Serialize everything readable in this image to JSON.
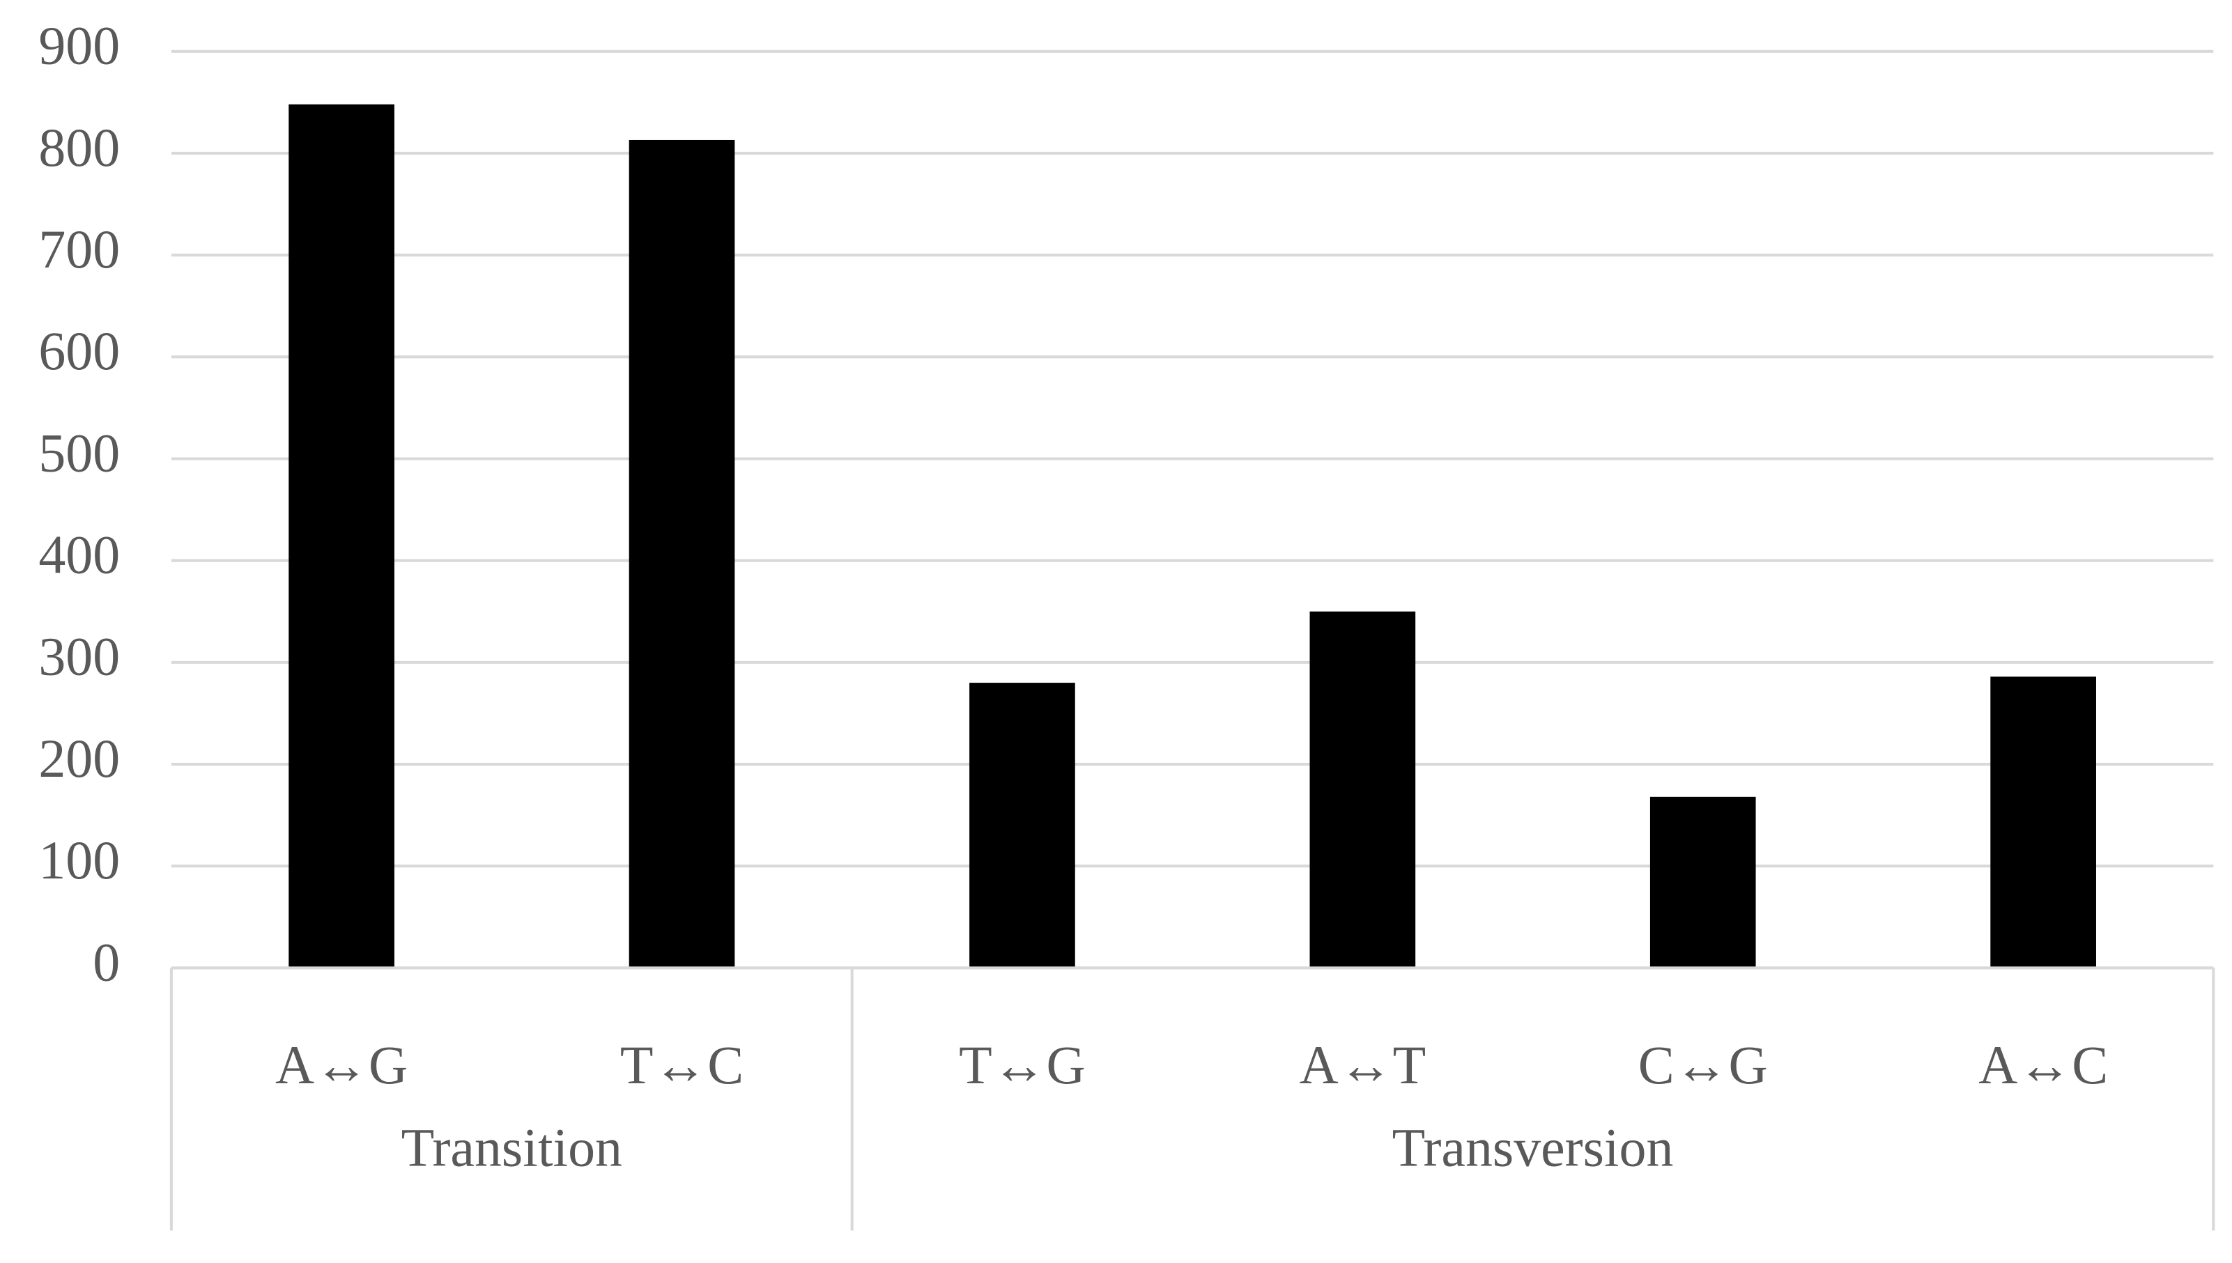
{
  "chart_data": {
    "type": "grouped-category-bar",
    "groups": [
      {
        "name": "Transition",
        "categories": [
          "A↔G",
          "T↔C"
        ],
        "values": [
          848,
          813
        ]
      },
      {
        "name": "Transversion",
        "categories": [
          "T↔G",
          "A↔T",
          "C↔G",
          "A↔C"
        ],
        "values": [
          280,
          350,
          168,
          286
        ]
      }
    ],
    "color": "#000000",
    "ylim": [
      0,
      900
    ],
    "yticks": [
      0,
      100,
      200,
      300,
      400,
      500,
      600,
      700,
      800,
      900
    ],
    "grid": true
  }
}
